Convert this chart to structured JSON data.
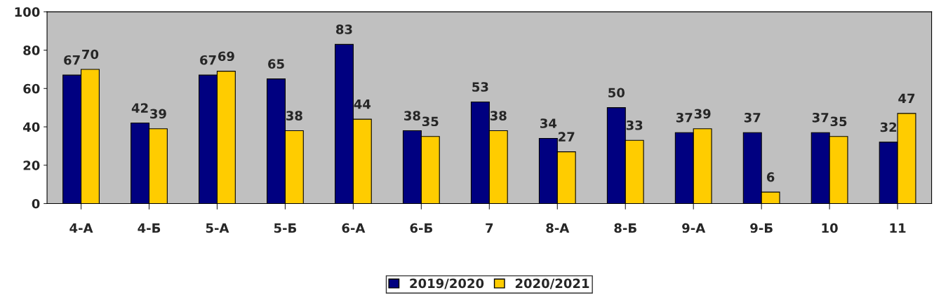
{
  "chart_data": {
    "type": "bar",
    "categories": [
      "4-А",
      "4-Б",
      "5-А",
      "5-Б",
      "6-А",
      "6-Б",
      "7",
      "8-А",
      "8-Б",
      "9-А",
      "9-Б",
      "10",
      "11"
    ],
    "series": [
      {
        "name": "2019/2020",
        "color": "#000080",
        "values": [
          67,
          42,
          67,
          65,
          83,
          38,
          53,
          34,
          50,
          37,
          37,
          37,
          32
        ]
      },
      {
        "name": "2020/2021",
        "color": "#ffcc00",
        "values": [
          70,
          39,
          69,
          38,
          44,
          35,
          38,
          27,
          33,
          39,
          6,
          35,
          47
        ]
      }
    ],
    "ylim": [
      0,
      100
    ],
    "yticks": [
      0,
      20,
      40,
      60,
      80,
      100
    ],
    "grid": false,
    "legend": "bottom",
    "data_labels": true
  }
}
